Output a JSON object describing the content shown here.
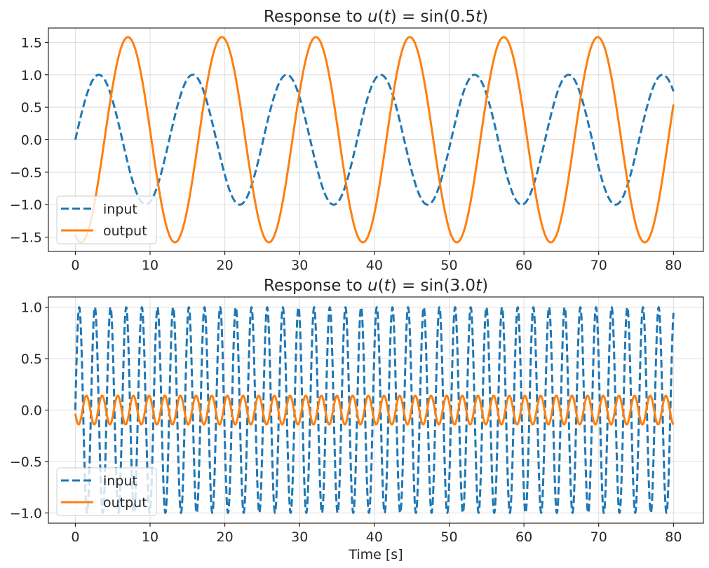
{
  "chart_data": [
    {
      "type": "line",
      "title_prefix": "Response to ",
      "title_math": "u(t) = sin(0.5t)",
      "title_parts": [
        "u",
        "(",
        "t",
        ") = sin(0.5",
        "t",
        ")"
      ],
      "xlabel": "",
      "ylabel": "",
      "xlim": [
        -3.6,
        84.0
      ],
      "ylim": [
        -1.72,
        1.72
      ],
      "xticks": [
        0,
        10,
        20,
        30,
        40,
        50,
        60,
        70,
        80
      ],
      "xtick_labels": [
        "0",
        "10",
        "20",
        "30",
        "40",
        "50",
        "60",
        "70",
        "80"
      ],
      "yticks": [
        -1.5,
        -1.0,
        -0.5,
        0.0,
        0.5,
        1.0,
        1.5
      ],
      "ytick_labels": [
        "−1.5",
        "−1.0",
        "−0.5",
        "0.0",
        "0.5",
        "1.0",
        "1.5"
      ],
      "grid": true,
      "legend_position": "lower-left",
      "series": [
        {
          "name": "input",
          "style": "dashed",
          "color": "#1f77b4",
          "amplitude": 1.0,
          "frequency": 0.5,
          "phase": 0.0,
          "t_range": [
            0,
            80
          ]
        },
        {
          "name": "output",
          "style": "solid",
          "color": "#ff7f0e",
          "amplitude": 1.58,
          "frequency": 0.5,
          "phase": -1.95,
          "t_range": [
            0,
            80
          ]
        }
      ]
    },
    {
      "type": "line",
      "title_prefix": "Response to ",
      "title_math": "u(t) = sin(3.0t)",
      "title_parts": [
        "u",
        "(",
        "t",
        ") = sin(3.0",
        "t",
        ")"
      ],
      "xlabel": "Time [s]",
      "ylabel": "",
      "xlim": [
        -3.6,
        84.0
      ],
      "ylim": [
        -1.1,
        1.1
      ],
      "xticks": [
        0,
        10,
        20,
        30,
        40,
        50,
        60,
        70,
        80
      ],
      "xtick_labels": [
        "0",
        "10",
        "20",
        "30",
        "40",
        "50",
        "60",
        "70",
        "80"
      ],
      "yticks": [
        -1.0,
        -0.5,
        0.0,
        0.5,
        1.0
      ],
      "ytick_labels": [
        "−1.0",
        "−0.5",
        "0.0",
        "0.5",
        "1.0"
      ],
      "grid": true,
      "legend_position": "lower-left",
      "series": [
        {
          "name": "input",
          "style": "dashed",
          "color": "#1f77b4",
          "amplitude": 1.0,
          "frequency": 3.0,
          "phase": 0.0,
          "t_range": [
            0,
            80
          ]
        },
        {
          "name": "output",
          "style": "solid",
          "color": "#ff7f0e",
          "amplitude": 0.14,
          "frequency": 3.0,
          "phase": -2.9,
          "t_range": [
            0,
            80
          ]
        }
      ]
    }
  ]
}
